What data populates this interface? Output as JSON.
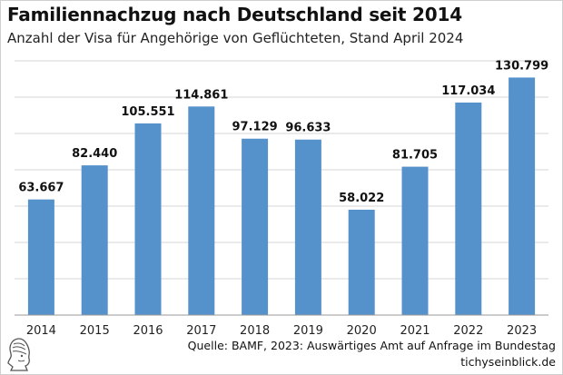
{
  "header": {
    "title": "Familiennachzug nach Deutschland seit 2014",
    "subtitle": "Anzahl der Visa für Angehörige von Geflüchteten, Stand April 2024"
  },
  "footer": {
    "source": "Quelle: BAMF, 2023: Auswärtiges Amt auf Anfrage im Bundestag",
    "brand": "tichyseinblick.de"
  },
  "colors": {
    "bar": "#5591cb",
    "grid": "#d6d6d6",
    "axis": "#9a9a9a"
  },
  "chart_data": {
    "type": "bar",
    "title": "Familiennachzug nach Deutschland seit 2014",
    "subtitle": "Anzahl der Visa für Angehörige von Geflüchteten, Stand April 2024",
    "categories": [
      "2014",
      "2015",
      "2016",
      "2017",
      "2018",
      "2019",
      "2020",
      "2021",
      "2022",
      "2023"
    ],
    "values": [
      63667,
      82440,
      105551,
      114861,
      97129,
      96633,
      58022,
      81705,
      117034,
      130799
    ],
    "value_labels": [
      "63.667",
      "82.440",
      "105.551",
      "114.861",
      "97.129",
      "96.633",
      "58.022",
      "81.705",
      "117.034",
      "130.799"
    ],
    "xlabel": "",
    "ylabel": "",
    "ylim": [
      0,
      140000
    ],
    "grid": true,
    "legend": "none"
  }
}
